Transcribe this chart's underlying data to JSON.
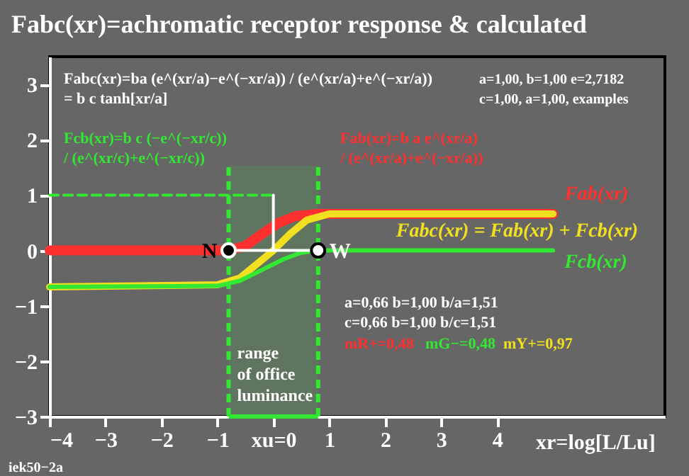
{
  "chart_data": {
    "type": "line",
    "title": "Fabc(xr)=achromatic receptor response & calculated",
    "xlabel": "xr=log[L/Lu]",
    "xlim": [
      -4,
      7
    ],
    "ylim": [
      -3,
      3.5
    ],
    "xticks": [
      -4,
      -3,
      -2,
      -1,
      {
        "value": 0,
        "label": "xu=0"
      },
      1,
      2,
      3,
      4
    ],
    "yticks": [
      -3,
      -2,
      -1,
      0,
      1,
      2,
      3
    ],
    "grid": false,
    "legend": false,
    "marker": "none",
    "line_style": "solid",
    "series": [
      {
        "name": "Fab(xr)",
        "color": "#ff3030",
        "x": [
          -4,
          -0.8,
          -0.5,
          -0.2,
          0.1,
          0.4,
          0.8,
          5
        ],
        "values": [
          0,
          0,
          0.08,
          0.3,
          0.5,
          0.62,
          0.66,
          0.66
        ]
      },
      {
        "name": "Fabc(xr) = Fab(xr) + Fcb(xr)",
        "color": "#f0e020",
        "x": [
          -4,
          -1,
          -0.6,
          -0.3,
          0,
          0.3,
          0.6,
          1,
          5
        ],
        "values": [
          -0.66,
          -0.62,
          -0.5,
          -0.25,
          0,
          0.3,
          0.55,
          0.66,
          0.66
        ]
      },
      {
        "name": "Fcb(xr)",
        "color": "#33e833",
        "x": [
          -4,
          -1,
          -0.6,
          -0.2,
          0.2,
          0.5,
          0.8,
          5
        ],
        "values": [
          -0.66,
          -0.64,
          -0.55,
          -0.35,
          -0.15,
          -0.04,
          0,
          0
        ]
      },
      {
        "color": "#33e833",
        "line_style": "dashed",
        "x": [
          -4,
          0
        ],
        "values": [
          1,
          1
        ]
      },
      {
        "color": "#ffffff",
        "x": [
          0,
          0
        ],
        "values": [
          0,
          1
        ]
      },
      {
        "color": "#ffffff",
        "x": [
          -0.8,
          0.8
        ],
        "values": [
          0,
          0
        ]
      },
      {
        "type": "scatter",
        "marker": "circle",
        "name": "N",
        "color": "#000000",
        "x": [
          -0.8
        ],
        "values": [
          0
        ]
      },
      {
        "type": "scatter",
        "marker": "circle",
        "name": "W",
        "color": "#ffffff",
        "x": [
          0.8
        ],
        "values": [
          0
        ]
      }
    ],
    "bands": [
      {
        "axis": "x",
        "from": -0.8,
        "to": 0.8,
        "label": "range\nof office\nluminance",
        "color": "#33e833"
      }
    ],
    "annotations": [
      "Fabc(xr)=ba (e^(xr/a)−e^(−xr/a)) / (e^(xr/a)+e^(−xr/a))\n= b c tanh[xr/a]",
      "a=1,00, b=1,00 e=2,7182\nc=1,00, a=1,00, examples",
      "Fcb(xr)=b c (−e^(−xr/c))\n/ (e^(xr/c)+e^(−xr/c))",
      "Fab(xr)=b a e^(xr/a)\n/ (e^(xr/a)+e^(−xr/a))",
      "a=0,66 b=1,00 b/a=1,51\nc=0,66 b=1,00 b/c=1,51",
      "mR+=0,48",
      "mG−=0,48",
      "mY+=0,97",
      "iek50−2a"
    ]
  }
}
